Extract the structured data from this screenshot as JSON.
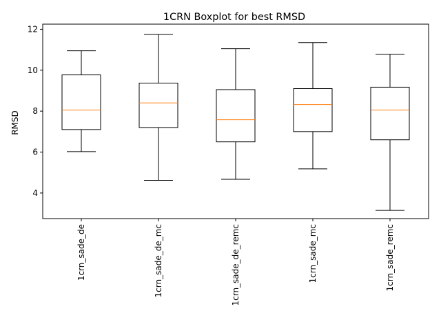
{
  "chart_data": {
    "type": "box",
    "title": "1CRN Boxplot for best RMSD",
    "xlabel": "",
    "ylabel": "RMSD",
    "ylim": [
      2.75,
      12.25
    ],
    "yticks": [
      4,
      6,
      8,
      10,
      12
    ],
    "grid": false,
    "categories": [
      "1crn_sade_de",
      "1crn_sade_de_mc",
      "1crn_sade_de_remc",
      "1crn_sade_mc",
      "1crn_sade_remc"
    ],
    "boxes": [
      {
        "whisker_low": 6.02,
        "q1": 7.1,
        "median": 8.05,
        "q3": 9.77,
        "whisker_high": 10.95
      },
      {
        "whisker_low": 4.62,
        "q1": 7.2,
        "median": 8.4,
        "q3": 9.37,
        "whisker_high": 11.75
      },
      {
        "whisker_low": 4.67,
        "q1": 6.5,
        "median": 7.58,
        "q3": 9.05,
        "whisker_high": 11.05
      },
      {
        "whisker_low": 5.18,
        "q1": 7.0,
        "median": 8.32,
        "q3": 9.1,
        "whisker_high": 11.35
      },
      {
        "whisker_low": 3.15,
        "q1": 6.6,
        "median": 8.05,
        "q3": 9.17,
        "whisker_high": 10.78
      }
    ],
    "colors": {
      "box": "#000000",
      "median": "#ff7f0e",
      "axes": "#000000"
    }
  }
}
